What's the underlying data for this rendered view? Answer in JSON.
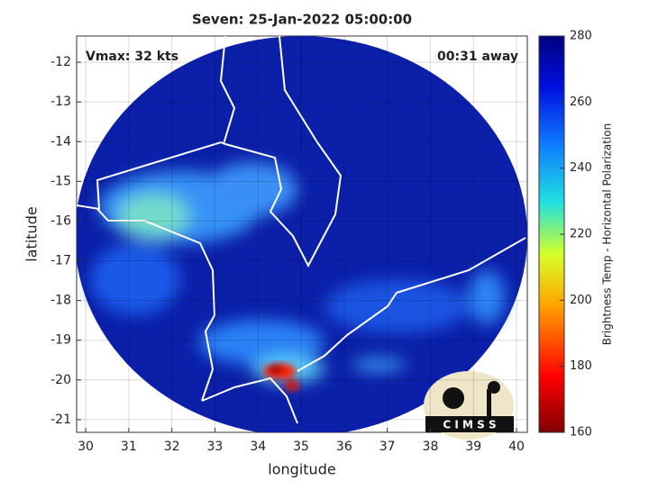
{
  "title": "Seven: 25-Jan-2022 05:00:00",
  "annotations": {
    "left": "Vmax: 32 kts",
    "right": "00:31 away"
  },
  "logo": "C I M S S",
  "chart_data": {
    "type": "map",
    "xlabel": "longitude",
    "ylabel": "latitude",
    "xlim": [
      29.79,
      40.25
    ],
    "ylim": [
      -21.32,
      -11.34
    ],
    "xticks": [
      30,
      31,
      32,
      33,
      34,
      35,
      36,
      37,
      38,
      39,
      40
    ],
    "yticks": [
      -12,
      -13,
      -14,
      -15,
      -16,
      -17,
      -18,
      -19,
      -20,
      -21
    ],
    "grid": true,
    "colorbar": {
      "label": "Brightness Temp - Horizontal Polarization",
      "lim": [
        160,
        280
      ],
      "ticks": [
        160,
        180,
        200,
        220,
        240,
        260,
        280
      ]
    }
  }
}
